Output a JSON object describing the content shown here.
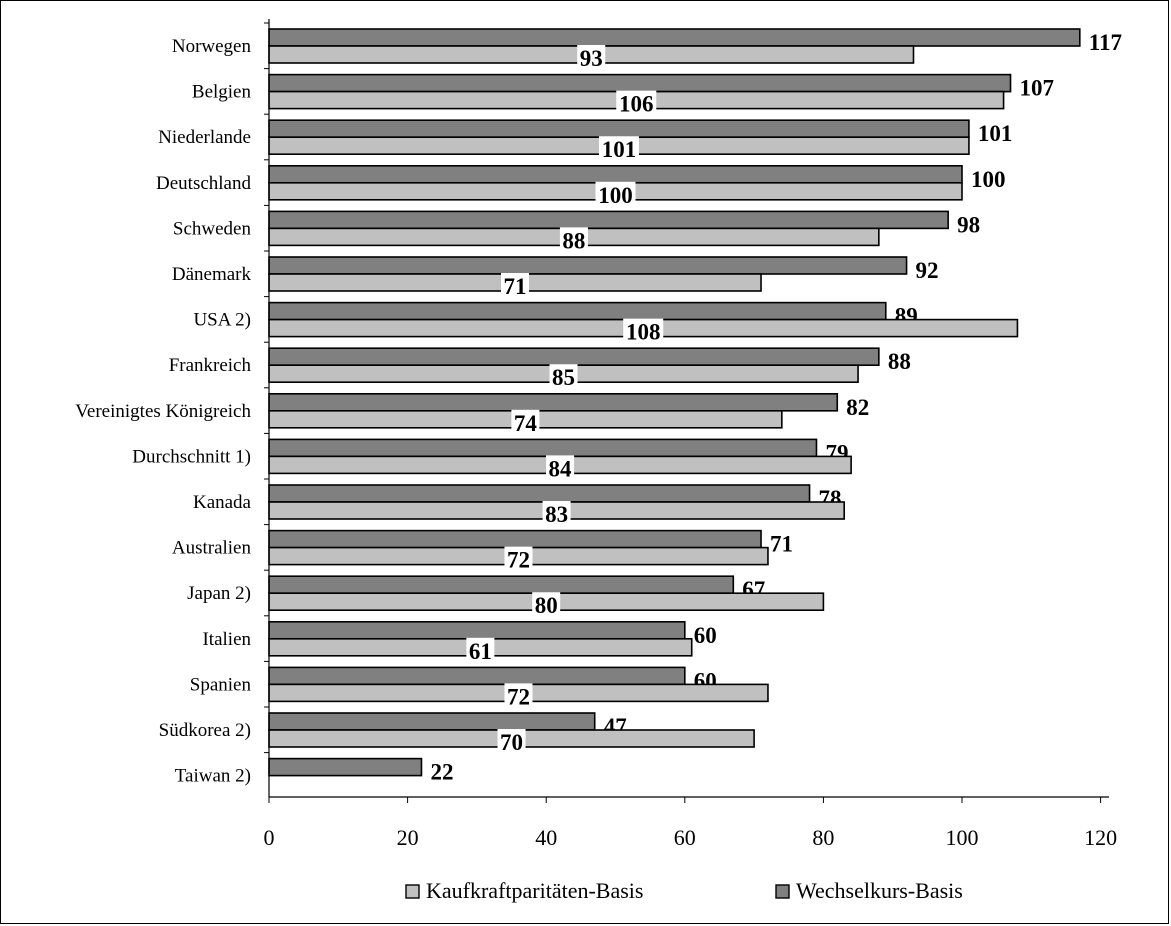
{
  "chart_data": {
    "type": "bar",
    "orientation": "horizontal",
    "categories": [
      "Norwegen",
      "Belgien",
      "Niederlande",
      "Deutschland",
      "Schweden",
      "Dänemark",
      "USA 2)",
      "Frankreich",
      "Vereinigtes Königreich",
      "Durchschnitt 1)",
      "Kanada",
      "Australien",
      "Japan 2)",
      "Italien",
      "Spanien",
      "Südkorea 2)",
      "Taiwan 2)"
    ],
    "series": [
      {
        "name": "Wechselkurs-Basis",
        "color": "#808080",
        "values": [
          117,
          107,
          101,
          100,
          98,
          92,
          89,
          88,
          82,
          79,
          78,
          71,
          67,
          60,
          60,
          47,
          22
        ]
      },
      {
        "name": "Kaufkraftparitäten-Basis",
        "color": "#c0c0c0",
        "values": [
          93,
          106,
          101,
          100,
          88,
          71,
          108,
          85,
          74,
          84,
          83,
          72,
          80,
          61,
          72,
          70,
          null
        ]
      }
    ],
    "x_ticks": [
      "0",
      "20",
      "40",
      "60",
      "80",
      "100",
      "120"
    ],
    "xlim": [
      0,
      125
    ],
    "legend": {
      "position": "bottom",
      "items": [
        "Kaufkraftparitäten-Basis",
        "Wechselkurs-Basis"
      ]
    },
    "grid": false
  }
}
